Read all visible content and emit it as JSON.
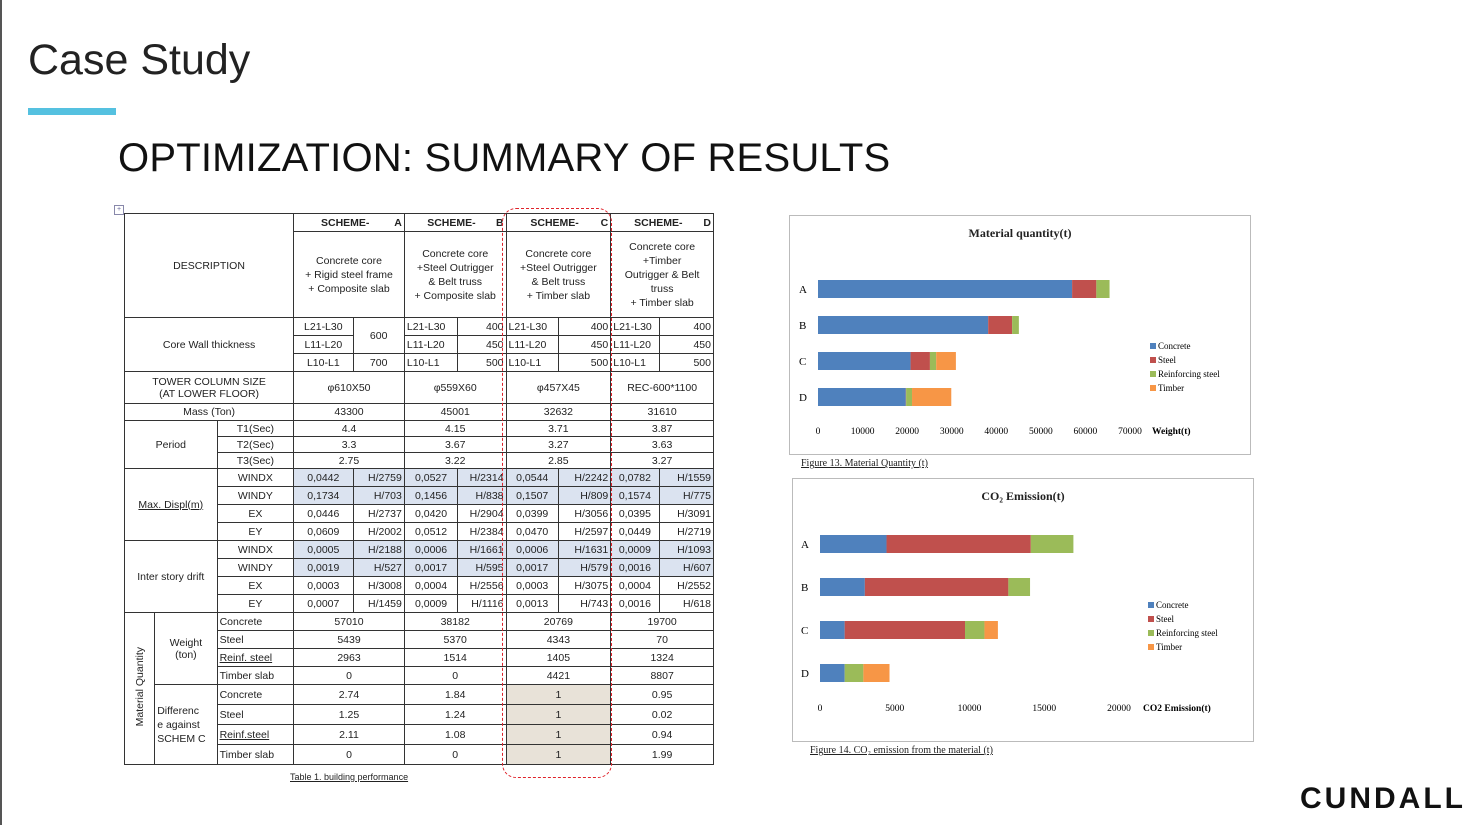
{
  "slide": {
    "title": "Case Study",
    "headline": "OPTIMIZATION: SUMMARY OF RESULTS",
    "logo": "CUNDALL"
  },
  "table": {
    "caption": "Table 1. building performance",
    "headers": [
      {
        "scheme": "SCHEME-",
        "key": "A",
        "desc": "Concrete core\n+ Rigid steel frame\n+ Composite slab"
      },
      {
        "scheme": "SCHEME-",
        "key": "B",
        "desc": "Concrete core\n+Steel Outrigger\n& Belt truss\n+ Composite slab"
      },
      {
        "scheme": "SCHEME-",
        "key": "C",
        "desc": "Concrete core\n+Steel Outrigger\n& Belt truss\n+ Timber slab"
      },
      {
        "scheme": "SCHEME-",
        "key": "D",
        "desc": "Concrete core\n+Timber\nOutrigger & Belt\ntruss\n+ Timber slab"
      }
    ],
    "labels": {
      "description": "DESCRIPTION",
      "core_wall": "Core Wall thickness",
      "tower_col": "TOWER COLUMN SIZE\n(AT LOWER FLOOR)",
      "mass": "Mass (Ton)",
      "period": "Period",
      "maxdispl": "Max. Displ(m)",
      "drift": "Inter story drift",
      "material": "Material Quantity",
      "weight": "Weight\n(ton)",
      "difference": "Differenc\ne against\nSCHEM C"
    },
    "core_wall": {
      "A": {
        "levels": [
          "L21-L30",
          "L11-L20",
          "L10-L1"
        ],
        "values": [
          "600",
          "700"
        ]
      },
      "B": {
        "levels": [
          "L21-L30",
          "L11-L20",
          "L10-L1"
        ],
        "values": [
          "400",
          "450",
          "500"
        ]
      },
      "C": {
        "levels": [
          "L21-L30",
          "L11-L20",
          "L10-L1"
        ],
        "values": [
          "400",
          "450",
          "500"
        ]
      },
      "D": {
        "levels": [
          "L21-L30",
          "L11-L20",
          "L10-L1"
        ],
        "values": [
          "400",
          "450",
          "500"
        ]
      }
    },
    "column_size": [
      "φ610X50",
      "φ559X60",
      "φ457X45",
      "REC-600*1100"
    ],
    "mass": [
      "43300",
      "45001",
      "32632",
      "31610"
    ],
    "period": [
      {
        "label": "T1(Sec)",
        "v": [
          "4.4",
          "4.15",
          "3.71",
          "3.87"
        ]
      },
      {
        "label": "T2(Sec)",
        "v": [
          "3.3",
          "3.67",
          "3.27",
          "3.63"
        ]
      },
      {
        "label": "T3(Sec)",
        "v": [
          "2.75",
          "3.22",
          "2.85",
          "3.27"
        ]
      }
    ],
    "displ": [
      {
        "label": "WINDX",
        "v": [
          "0,0442",
          "H/2759",
          "0,0527",
          "H/2314",
          "0,0544",
          "H/2242",
          "0,0782",
          "H/1559"
        ],
        "hl": true
      },
      {
        "label": "WINDY",
        "v": [
          "0,1734",
          "H/703",
          "0,1456",
          "H/838",
          "0,1507",
          "H/809",
          "0,1574",
          "H/775"
        ],
        "hl": true
      },
      {
        "label": "EX",
        "v": [
          "0,0446",
          "H/2737",
          "0,0420",
          "H/2904",
          "0,0399",
          "H/3056",
          "0,0395",
          "H/3091"
        ],
        "hl": false
      },
      {
        "label": "EY",
        "v": [
          "0,0609",
          "H/2002",
          "0,0512",
          "H/2384",
          "0,0470",
          "H/2597",
          "0,0449",
          "H/2719"
        ],
        "hl": false
      }
    ],
    "drift": [
      {
        "label": "WINDX",
        "v": [
          "0,0005",
          "H/2188",
          "0,0006",
          "H/1661",
          "0,0006",
          "H/1631",
          "0,0009",
          "H/1093"
        ],
        "hl": true
      },
      {
        "label": "WINDY",
        "v": [
          "0,0019",
          "H/527",
          "0,0017",
          "H/595",
          "0,0017",
          "H/579",
          "0,0016",
          "H/607"
        ],
        "hl": true
      },
      {
        "label": "EX",
        "v": [
          "0,0003",
          "H/3008",
          "0,0004",
          "H/2556",
          "0,0003",
          "H/3075",
          "0,0004",
          "H/2552"
        ],
        "hl": false
      },
      {
        "label": "EY",
        "v": [
          "0,0007",
          "H/1459",
          "0,0009",
          "H/1116",
          "0,0013",
          "H/743",
          "0,0016",
          "H/618"
        ],
        "hl": false
      }
    ],
    "weight": [
      {
        "label": "Concrete",
        "v": [
          "57010",
          "38182",
          "20769",
          "19700"
        ]
      },
      {
        "label": "Steel",
        "v": [
          "5439",
          "5370",
          "4343",
          "70"
        ]
      },
      {
        "label": "Reinf. steel",
        "v": [
          "2963",
          "1514",
          "1405",
          "1324"
        ]
      },
      {
        "label": "Timber slab",
        "v": [
          "0",
          "0",
          "4421",
          "8807"
        ]
      }
    ],
    "difference": [
      {
        "label": "Concrete",
        "v": [
          "2.74",
          "1.84",
          "1",
          "0.95"
        ]
      },
      {
        "label": "Steel",
        "v": [
          "1.25",
          "1.24",
          "1",
          "0.02"
        ]
      },
      {
        "label": "Reinf.steel",
        "v": [
          "2.11",
          "1.08",
          "1",
          "0.94"
        ]
      },
      {
        "label": "Timber slab",
        "v": [
          "0",
          "0",
          "1",
          "1.99"
        ]
      }
    ]
  },
  "chart_data": [
    {
      "type": "bar",
      "orientation": "horizontal",
      "stacked": true,
      "title": "Material quantity(t)",
      "xlabel": "Weight(t)",
      "caption": "Figure 13. Material Quantity (t)",
      "categories": [
        "A",
        "B",
        "C",
        "D"
      ],
      "xlim": [
        0,
        70000
      ],
      "ticks": [
        "0",
        "10000",
        "20000",
        "30000",
        "40000",
        "50000",
        "60000",
        "70000"
      ],
      "legend_position": "right",
      "series": [
        {
          "name": "Concrete",
          "color": "#4f81bd",
          "values": [
            57010,
            38182,
            20769,
            19700
          ]
        },
        {
          "name": "Steel",
          "color": "#c0504d",
          "values": [
            5439,
            5370,
            4343,
            70
          ]
        },
        {
          "name": "Reinforcing steel",
          "color": "#9bbb59",
          "values": [
            2963,
            1514,
            1405,
            1324
          ]
        },
        {
          "name": "Timber",
          "color": "#f79646",
          "values": [
            0,
            0,
            4421,
            8807
          ]
        }
      ]
    },
    {
      "type": "bar",
      "orientation": "horizontal",
      "stacked": true,
      "title": "CO₂ Emission(t)",
      "xlabel": "CO2 Emission(t)",
      "caption": "Figure 14. CO₂ emission from the material (t)",
      "categories": [
        "A",
        "B",
        "C",
        "D"
      ],
      "xlim": [
        0,
        20000
      ],
      "ticks": [
        "0",
        "5000",
        "10000",
        "15000",
        "20000"
      ],
      "legend_position": "right",
      "series": [
        {
          "name": "Concrete",
          "color": "#4f81bd",
          "values": [
            4450,
            3000,
            1650,
            1650
          ]
        },
        {
          "name": "Steel",
          "color": "#c0504d",
          "values": [
            9650,
            9600,
            8050,
            0
          ]
        },
        {
          "name": "Reinforcing steel",
          "color": "#9bbb59",
          "values": [
            2850,
            1450,
            1300,
            1250
          ]
        },
        {
          "name": "Timber",
          "color": "#f79646",
          "values": [
            0,
            0,
            900,
            1750
          ]
        }
      ]
    }
  ]
}
